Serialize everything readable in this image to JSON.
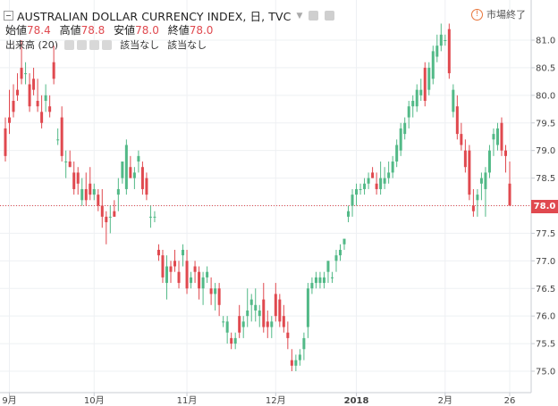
{
  "header": {
    "title": "AUSTRALIAN DOLLAR CURRENCY INDEX, 日, TVC",
    "ohlc": [
      {
        "label": "始値",
        "value": "78.4"
      },
      {
        "label": "高値",
        "value": "78.8"
      },
      {
        "label": "安値",
        "value": "78.0"
      },
      {
        "label": "終値",
        "value": "78.0"
      }
    ],
    "volume_label": "出来高 (20)",
    "na_1": "該当なし",
    "na_2": "該当なし",
    "status_icon": "!",
    "status_text": "市場終了"
  },
  "last_price_label": "78.0",
  "colors": {
    "up": "#52b987",
    "down": "#e0494f",
    "grid": "#eef0f3",
    "last_line": "#e0494f"
  },
  "chart_data": {
    "type": "candlestick",
    "title": "AUSTRALIAN DOLLAR CURRENCY INDEX, 日, TVC",
    "ylim": [
      74.75,
      81.3
    ],
    "yticks": [
      75.0,
      75.5,
      76.0,
      76.5,
      77.0,
      77.5,
      78.0,
      78.5,
      79.0,
      79.5,
      80.0,
      80.5,
      81.0
    ],
    "ytick_labels": [
      "75.0",
      "75.5",
      "76.0",
      "76.5",
      "77.0",
      "77.5",
      "78.0",
      "78.5",
      "79.0",
      "79.5",
      "80.0",
      "80.5",
      "81.0"
    ],
    "xticks": [
      {
        "label": "9月",
        "bar": 1,
        "bold": false
      },
      {
        "label": "10月",
        "bar": 22,
        "bold": false
      },
      {
        "label": "11月",
        "bar": 45,
        "bold": false
      },
      {
        "label": "12月",
        "bar": 67,
        "bold": false
      },
      {
        "label": "2018",
        "bar": 87,
        "bold": true
      },
      {
        "label": "2月",
        "bar": 109,
        "bold": false
      },
      {
        "label": "26",
        "bar": 125,
        "bold": false
      }
    ],
    "last_value": 78.0,
    "bars": [
      [
        79.4,
        79.6,
        78.8,
        78.9
      ],
      [
        79.6,
        80.1,
        79.3,
        79.5
      ],
      [
        79.9,
        80.2,
        79.6,
        79.7
      ],
      [
        80.1,
        80.4,
        79.9,
        80.0
      ],
      [
        80.5,
        81.0,
        80.2,
        80.3
      ],
      [
        80.4,
        80.6,
        80.2,
        80.4
      ],
      [
        80.2,
        80.4,
        79.7,
        79.8
      ],
      [
        80.3,
        80.5,
        80.0,
        80.1
      ],
      [
        79.9,
        80.3,
        79.7,
        79.8
      ],
      [
        79.7,
        80.0,
        79.4,
        79.5
      ],
      [
        79.9,
        80.2,
        79.7,
        80.0
      ],
      [
        79.8,
        80.0,
        79.6,
        79.7
      ],
      [
        80.6,
        80.9,
        80.2,
        80.3
      ],
      [
        79.2,
        79.4,
        79.1,
        79.2
      ],
      [
        79.6,
        79.8,
        78.8,
        78.9
      ],
      [
        78.8,
        79.0,
        78.5,
        78.8
      ],
      [
        78.8,
        79.0,
        78.7,
        78.7
      ],
      [
        78.6,
        78.8,
        78.2,
        78.3
      ],
      [
        78.6,
        78.7,
        78.2,
        78.4
      ],
      [
        78.1,
        78.5,
        78.0,
        78.3
      ],
      [
        78.3,
        78.6,
        78.0,
        78.1
      ],
      [
        78.4,
        78.7,
        78.1,
        78.2
      ],
      [
        78.2,
        78.4,
        78.1,
        78.3
      ],
      [
        78.2,
        78.3,
        77.9,
        78.0
      ],
      [
        78.0,
        78.3,
        77.6,
        77.8
      ],
      [
        77.8,
        77.9,
        77.3,
        77.7
      ],
      [
        77.8,
        78.0,
        77.5,
        77.8
      ],
      [
        77.9,
        78.1,
        77.8,
        77.8
      ],
      [
        78.2,
        78.5,
        77.9,
        78.3
      ],
      [
        78.5,
        78.8,
        78.4,
        78.8
      ],
      [
        78.3,
        79.2,
        78.2,
        79.1
      ],
      [
        78.7,
        78.9,
        78.5,
        78.5
      ],
      [
        78.5,
        78.7,
        78.3,
        78.6
      ],
      [
        78.8,
        79.0,
        78.6,
        78.9
      ],
      [
        78.7,
        78.8,
        78.2,
        78.3
      ],
      [
        78.5,
        78.6,
        78.1,
        78.2
      ],
      [
        77.8,
        78.0,
        77.6,
        77.8
      ],
      [
        77.8,
        77.9,
        77.7,
        77.8
      ],
      [
        77.2,
        77.3,
        77.0,
        77.1
      ],
      [
        77.1,
        77.2,
        76.6,
        76.7
      ],
      [
        76.6,
        77.1,
        76.3,
        76.9
      ],
      [
        76.9,
        77.0,
        76.6,
        76.8
      ],
      [
        77.0,
        77.2,
        76.8,
        76.9
      ],
      [
        76.8,
        77.0,
        76.5,
        76.6
      ],
      [
        77.1,
        77.3,
        76.9,
        77.2
      ],
      [
        77.0,
        77.2,
        76.4,
        76.5
      ],
      [
        76.6,
        76.8,
        76.5,
        76.7
      ],
      [
        76.9,
        77.0,
        76.6,
        76.8
      ],
      [
        76.8,
        76.9,
        76.3,
        76.5
      ],
      [
        76.5,
        76.8,
        76.2,
        76.7
      ],
      [
        76.7,
        76.9,
        76.6,
        76.8
      ],
      [
        76.5,
        76.7,
        76.2,
        76.4
      ],
      [
        76.4,
        76.6,
        76.1,
        76.5
      ],
      [
        76.5,
        76.6,
        76.0,
        76.2
      ],
      [
        75.9,
        76.0,
        75.8,
        75.9
      ],
      [
        75.7,
        76.0,
        75.5,
        75.9
      ],
      [
        75.6,
        75.7,
        75.4,
        75.5
      ],
      [
        75.5,
        75.7,
        75.4,
        75.6
      ],
      [
        76.0,
        76.2,
        75.6,
        75.7
      ],
      [
        75.8,
        76.0,
        75.6,
        75.9
      ],
      [
        76.0,
        76.5,
        75.8,
        76.1
      ],
      [
        76.2,
        76.4,
        75.9,
        76.3
      ],
      [
        76.1,
        76.5,
        75.9,
        76.2
      ],
      [
        76.0,
        76.2,
        75.8,
        76.1
      ],
      [
        76.3,
        76.6,
        75.7,
        75.8
      ],
      [
        75.9,
        76.1,
        75.6,
        75.8
      ],
      [
        75.8,
        76.0,
        75.6,
        75.9
      ],
      [
        76.4,
        76.6,
        75.9,
        76.0
      ],
      [
        76.3,
        76.4,
        75.8,
        75.9
      ],
      [
        76.0,
        76.2,
        75.7,
        75.8
      ],
      [
        75.7,
        75.9,
        75.4,
        75.6
      ],
      [
        75.2,
        75.4,
        75.0,
        75.1
      ],
      [
        75.1,
        75.3,
        75.0,
        75.2
      ],
      [
        75.2,
        75.4,
        75.1,
        75.3
      ],
      [
        75.4,
        75.7,
        75.2,
        75.6
      ],
      [
        75.8,
        76.6,
        75.6,
        76.5
      ],
      [
        76.5,
        76.7,
        76.4,
        76.6
      ],
      [
        76.6,
        76.8,
        76.5,
        76.7
      ],
      [
        76.6,
        76.8,
        76.5,
        76.7
      ],
      [
        76.6,
        76.8,
        76.5,
        76.7
      ],
      [
        76.8,
        77.0,
        76.6,
        77.0
      ],
      [
        76.7,
        76.8,
        76.6,
        76.7
      ],
      [
        77.0,
        77.2,
        76.8,
        77.1
      ],
      [
        77.1,
        77.3,
        77.0,
        77.2
      ],
      [
        77.3,
        77.4,
        77.2,
        77.4
      ],
      [
        77.8,
        78.0,
        77.7,
        77.9
      ],
      [
        78.0,
        78.3,
        77.8,
        78.2
      ],
      [
        78.2,
        78.4,
        78.0,
        78.3
      ],
      [
        78.3,
        78.4,
        78.2,
        78.3
      ],
      [
        78.3,
        78.5,
        78.2,
        78.4
      ],
      [
        78.4,
        78.6,
        78.3,
        78.5
      ],
      [
        78.6,
        78.7,
        78.5,
        78.5
      ],
      [
        78.4,
        78.6,
        78.2,
        78.3
      ],
      [
        78.3,
        78.8,
        78.2,
        78.5
      ],
      [
        78.4,
        78.7,
        78.3,
        78.5
      ],
      [
        78.5,
        78.8,
        78.4,
        78.6
      ],
      [
        78.6,
        78.9,
        78.5,
        78.8
      ],
      [
        78.8,
        79.2,
        78.7,
        79.1
      ],
      [
        79.0,
        79.5,
        78.9,
        79.4
      ],
      [
        79.3,
        79.6,
        79.2,
        79.5
      ],
      [
        79.6,
        79.9,
        79.4,
        79.8
      ],
      [
        79.8,
        80.0,
        79.6,
        79.9
      ],
      [
        79.8,
        80.2,
        79.7,
        80.1
      ],
      [
        80.0,
        80.3,
        79.9,
        80.1
      ],
      [
        80.5,
        80.6,
        79.8,
        79.9
      ],
      [
        80.1,
        80.6,
        80.0,
        80.5
      ],
      [
        80.3,
        80.9,
        80.2,
        80.8
      ],
      [
        80.7,
        81.1,
        80.6,
        80.9
      ],
      [
        80.9,
        81.3,
        80.8,
        81.1
      ],
      [
        81.0,
        81.1,
        80.9,
        81.0
      ],
      [
        81.2,
        81.3,
        80.3,
        80.4
      ],
      [
        79.7,
        80.2,
        79.6,
        80.1
      ],
      [
        79.8,
        80.0,
        79.2,
        79.3
      ],
      [
        79.3,
        79.5,
        79.0,
        79.1
      ],
      [
        79.0,
        79.2,
        78.6,
        78.7
      ],
      [
        79.0,
        79.1,
        78.1,
        78.2
      ],
      [
        78.0,
        78.3,
        77.8,
        77.9
      ],
      [
        78.1,
        78.3,
        77.8,
        78.2
      ],
      [
        78.4,
        78.6,
        78.1,
        78.5
      ],
      [
        78.3,
        78.7,
        77.8,
        78.6
      ],
      [
        78.6,
        79.1,
        78.5,
        79.0
      ],
      [
        79.2,
        79.4,
        78.9,
        79.3
      ],
      [
        79.1,
        79.5,
        79.0,
        79.4
      ],
      [
        79.5,
        79.6,
        78.9,
        79.0
      ],
      [
        79.0,
        79.1,
        78.6,
        78.9
      ],
      [
        78.4,
        78.8,
        78.0,
        78.0
      ]
    ]
  }
}
